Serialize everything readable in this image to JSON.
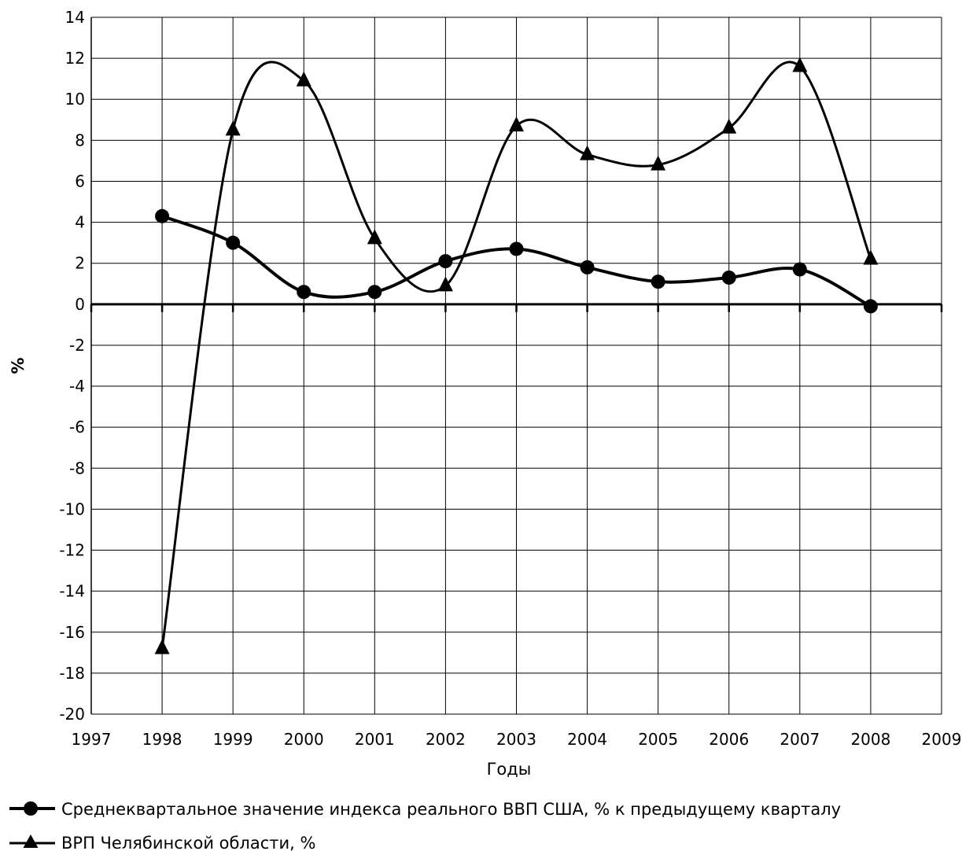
{
  "chart_data": {
    "type": "line",
    "title": "",
    "xlabel": "Годы",
    "ylabel": "%",
    "xlim": [
      1997,
      2009
    ],
    "ylim": [
      -20,
      14
    ],
    "x_ticks": [
      "1997",
      "1998",
      "1999",
      "2000",
      "2001",
      "2002",
      "2003",
      "2004",
      "2005",
      "2006",
      "2007",
      "2008",
      "2009"
    ],
    "y_ticks": [
      "14",
      "12",
      "10",
      "8",
      "6",
      "4",
      "2",
      "0",
      "-2",
      "-4",
      "-6",
      "-8",
      "-10",
      "-12",
      "-14",
      "-16",
      "-18",
      "-20"
    ],
    "grid": true,
    "legend_position": "bottom",
    "series": [
      {
        "name": "Среднеквартальное значение индекса реального ВВП США, % к предыдущему кварталу",
        "marker": "circle",
        "x": [
          1998,
          1999,
          2000,
          2001,
          2002,
          2003,
          2004,
          2005,
          2006,
          2007,
          2008
        ],
        "y": [
          4.3,
          3.0,
          0.6,
          0.6,
          2.1,
          2.7,
          1.8,
          1.1,
          1.3,
          1.7,
          -0.1
        ]
      },
      {
        "name": "ВРП Челябинской области, %",
        "marker": "triangle",
        "x": [
          1998,
          1999,
          2000,
          2001,
          2002,
          2003,
          2004,
          2005,
          2006,
          2007,
          2008
        ],
        "y": [
          -16.8,
          8.5,
          10.9,
          3.2,
          0.9,
          8.7,
          7.3,
          6.8,
          8.6,
          11.6,
          2.2
        ]
      }
    ]
  }
}
